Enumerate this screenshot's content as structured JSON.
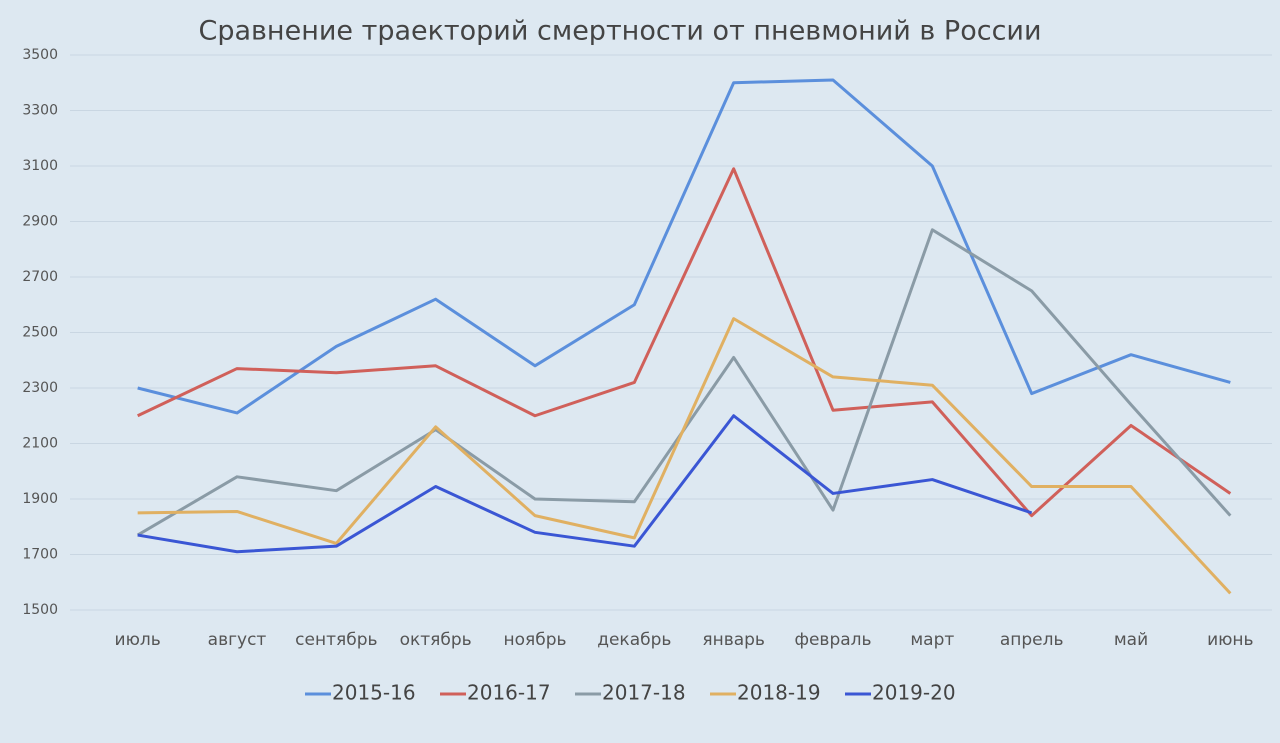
{
  "chart_data": {
    "type": "line",
    "title": "Сравнение траекторий смертности от пневмоний в России",
    "categories": [
      "июль",
      "август",
      "сентябрь",
      "октябрь",
      "ноябрь",
      "декабрь",
      "январь",
      "февраль",
      "март",
      "апрель",
      "май",
      "июнь"
    ],
    "series": [
      {
        "name": "2015-16",
        "color": "#5b8fdc",
        "values": [
          2300,
          2210,
          2450,
          2620,
          2380,
          2600,
          3400,
          3410,
          3100,
          2280,
          2420,
          2320
        ]
      },
      {
        "name": "2016-17",
        "color": "#d0605a",
        "values": [
          2200,
          2370,
          2355,
          2380,
          2200,
          2320,
          3090,
          2220,
          2250,
          1840,
          2165,
          1920
        ]
      },
      {
        "name": "2017-18",
        "color": "#8a9ba6",
        "values": [
          1770,
          1980,
          1930,
          2150,
          1900,
          1890,
          2410,
          1860,
          2870,
          2650,
          2240,
          1840
        ]
      },
      {
        "name": "2018-19",
        "color": "#e0b062",
        "values": [
          1850,
          1855,
          1740,
          2160,
          1840,
          1760,
          2550,
          2340,
          2310,
          1945,
          1945,
          1560
        ]
      },
      {
        "name": "2019-20",
        "color": "#3a56d4",
        "values": [
          1770,
          1710,
          1730,
          1945,
          1780,
          1730,
          2200,
          1920,
          1970,
          1850,
          null,
          null
        ]
      }
    ],
    "ylim": [
      1500,
      3500
    ],
    "yticks": [
      1500,
      1700,
      1900,
      2100,
      2300,
      2500,
      2700,
      2900,
      3100,
      3300,
      3500
    ],
    "grid": true,
    "legend": "bottom"
  }
}
